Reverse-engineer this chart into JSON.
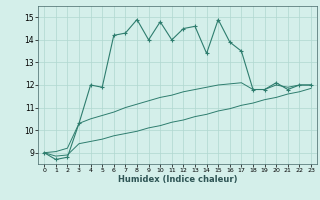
{
  "xlabel": "Humidex (Indice chaleur)",
  "background_color": "#d4efea",
  "grid_color": "#b0d8d0",
  "line_color": "#2e7d6e",
  "x": [
    0,
    1,
    2,
    3,
    4,
    5,
    6,
    7,
    8,
    9,
    10,
    11,
    12,
    13,
    14,
    15,
    16,
    17,
    18,
    19,
    20,
    21,
    22,
    23
  ],
  "y_main": [
    9.0,
    8.7,
    8.8,
    10.3,
    12.0,
    11.9,
    14.2,
    14.3,
    14.9,
    14.0,
    14.8,
    14.0,
    14.5,
    14.6,
    13.4,
    14.9,
    13.9,
    13.5,
    11.8,
    11.8,
    12.1,
    11.8,
    12.0,
    12.0
  ],
  "y_low": [
    9.0,
    8.85,
    8.9,
    9.4,
    9.5,
    9.6,
    9.75,
    9.85,
    9.95,
    10.1,
    10.2,
    10.35,
    10.45,
    10.6,
    10.7,
    10.85,
    10.95,
    11.1,
    11.2,
    11.35,
    11.45,
    11.6,
    11.7,
    11.85
  ],
  "y_high": [
    9.0,
    9.05,
    9.2,
    10.3,
    10.5,
    10.65,
    10.8,
    11.0,
    11.15,
    11.3,
    11.45,
    11.55,
    11.7,
    11.8,
    11.9,
    12.0,
    12.05,
    12.1,
    11.8,
    11.8,
    12.0,
    11.9,
    12.0,
    12.0
  ],
  "ylim": [
    8.5,
    15.5
  ],
  "yticks": [
    9,
    10,
    11,
    12,
    13,
    14,
    15
  ],
  "xticks": [
    0,
    1,
    2,
    3,
    4,
    5,
    6,
    7,
    8,
    9,
    10,
    11,
    12,
    13,
    14,
    15,
    16,
    17,
    18,
    19,
    20,
    21,
    22,
    23
  ],
  "ytick_fontsize": 5.5,
  "xtick_fontsize": 4.5,
  "xlabel_fontsize": 6.0
}
